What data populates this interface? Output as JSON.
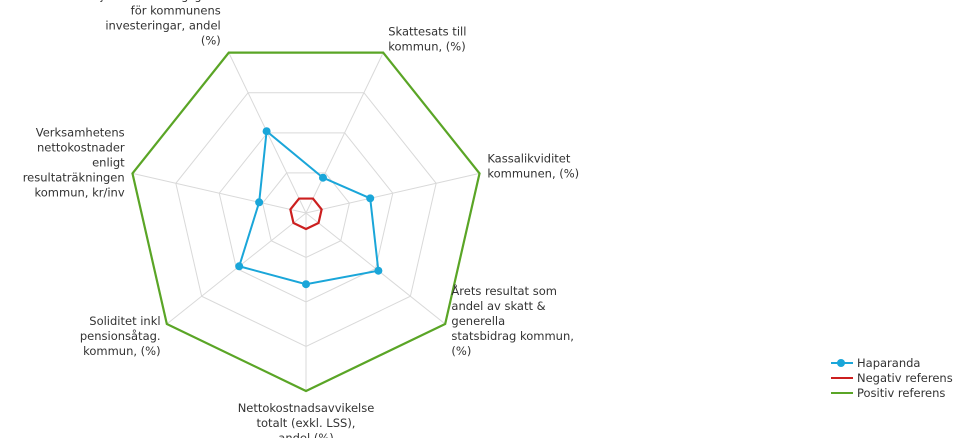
{
  "chart_data": {
    "type": "radar",
    "axes": [
      "Skattesats till kommun, (%)",
      "Kassalikviditet kommunen, (%)",
      "Årets resultat som andel av skatt & generella statsbidrag kommun, (%)",
      "Nettokostnadsavvikelse totalt (exkl. LSS), andel (%)",
      "Soliditet inkl pensionsåtag. kommun, (%)",
      "Verksamhetens nettokostnader enligt resultaträkningen kommun, kr/inv",
      "Självfinansieringsgrad för kommunens investeringar, andel (%)"
    ],
    "axis_label_lines": [
      [
        "Skattesats till",
        "kommun, (%)"
      ],
      [
        "Kassalikviditet",
        "kommunen, (%)"
      ],
      [
        "Årets resultat som",
        "andel av skatt &",
        "generella",
        "statsbidrag kommun,",
        "(%)"
      ],
      [
        "Nettokostnadsavvikelse",
        "totalt (exkl. LSS),",
        "andel (%)"
      ],
      [
        "Soliditet inkl",
        "pensionsåtag.",
        "kommun, (%)"
      ],
      [
        "Verksamhetens",
        "nettokostnader",
        "enligt",
        "resultaträkningen",
        "kommun, kr/inv"
      ],
      [
        "Självfinansieringsgrad",
        "för kommunens",
        "investeringar, andel",
        "(%)"
      ]
    ],
    "range": [
      0,
      1
    ],
    "grid_levels": [
      0.25,
      0.5,
      0.75,
      1.0
    ],
    "grid": true,
    "legend_position": "bottom-right",
    "series": [
      {
        "name": "Haparanda",
        "values": [
          0.22,
          0.37,
          0.52,
          0.4,
          0.48,
          0.27,
          0.51
        ],
        "color": "#1aa6d9",
        "marker": true
      },
      {
        "name": "Negativ referens",
        "values": [
          0.09,
          0.09,
          0.09,
          0.09,
          0.09,
          0.09,
          0.09
        ],
        "color": "#cc1f1f",
        "marker": false
      },
      {
        "name": "Positiv referens",
        "values": [
          1,
          1,
          1,
          1,
          1,
          1,
          1
        ],
        "color": "#5aa526",
        "marker": false
      }
    ]
  }
}
